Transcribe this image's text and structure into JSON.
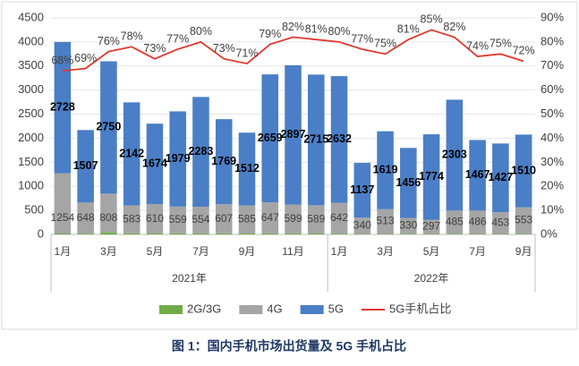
{
  "chart_data": {
    "type": "bar",
    "caption": "图 1：国内手机市场出货量及 5G 手机占比",
    "categories": [
      "1月",
      null,
      "3月",
      null,
      "5月",
      null,
      "7月",
      null,
      "9月",
      null,
      "11月",
      null,
      "1月",
      null,
      "3月",
      null,
      "5月",
      null,
      "7月",
      null,
      "9月"
    ],
    "groups": [
      "2021年",
      "2022年"
    ],
    "stacked": true,
    "series": [
      {
        "name": "2G/3G",
        "color": "#70ad47",
        "values": [
          18,
          15,
          40,
          20,
          18,
          20,
          20,
          20,
          18,
          20,
          20,
          18,
          16,
          10,
          12,
          12,
          10,
          12,
          10,
          10,
          12
        ]
      },
      {
        "name": "4G",
        "color": "#a5a5a5",
        "values": [
          1254,
          648,
          808,
          583,
          610,
          559,
          554,
          607,
          585,
          647,
          599,
          589,
          642,
          340,
          513,
          330,
          297,
          485,
          486,
          453,
          553
        ]
      },
      {
        "name": "5G",
        "color": "#4a7ec6",
        "values": [
          2728,
          1507,
          2750,
          2142,
          1674,
          1979,
          2283,
          1769,
          1512,
          2659,
          2897,
          2715,
          2632,
          1137,
          1619,
          1456,
          1774,
          2303,
          1467,
          1427,
          1510
        ]
      },
      {
        "name": "5G手机占比",
        "type": "line",
        "axis": "y2",
        "color": "#e0392e",
        "values": [
          68,
          69,
          76,
          78,
          73,
          77,
          80,
          73,
          71,
          79,
          82,
          81,
          80,
          77,
          75,
          81,
          85,
          82,
          74,
          75,
          72
        ],
        "value_labels": [
          "68%",
          "69%",
          "76%",
          "78%",
          "73%",
          "77%",
          "80%",
          "73%",
          "71%",
          "79%",
          "82%",
          "81%",
          "80%",
          "77%",
          "75%",
          "81%",
          "85%",
          "82%",
          "74%",
          "75%",
          "72%"
        ]
      }
    ],
    "ylim": [
      0,
      4500
    ],
    "yticks": [
      0,
      500,
      1000,
      1500,
      2000,
      2500,
      3000,
      3500,
      4000,
      4500
    ],
    "y2lim": [
      0,
      90
    ],
    "y2ticks": [
      {
        "value": 0,
        "label": "0%"
      },
      {
        "value": 10,
        "label": "10%"
      },
      {
        "value": 20,
        "label": "20%"
      },
      {
        "value": 30,
        "label": "30%"
      },
      {
        "value": 40,
        "label": "40%"
      },
      {
        "value": 50,
        "label": "50%"
      },
      {
        "value": 60,
        "label": "60%"
      },
      {
        "value": 70,
        "label": "70%"
      },
      {
        "value": 80,
        "label": "80%"
      },
      {
        "value": 90,
        "label": "90%"
      }
    ],
    "legend": "bottom"
  }
}
